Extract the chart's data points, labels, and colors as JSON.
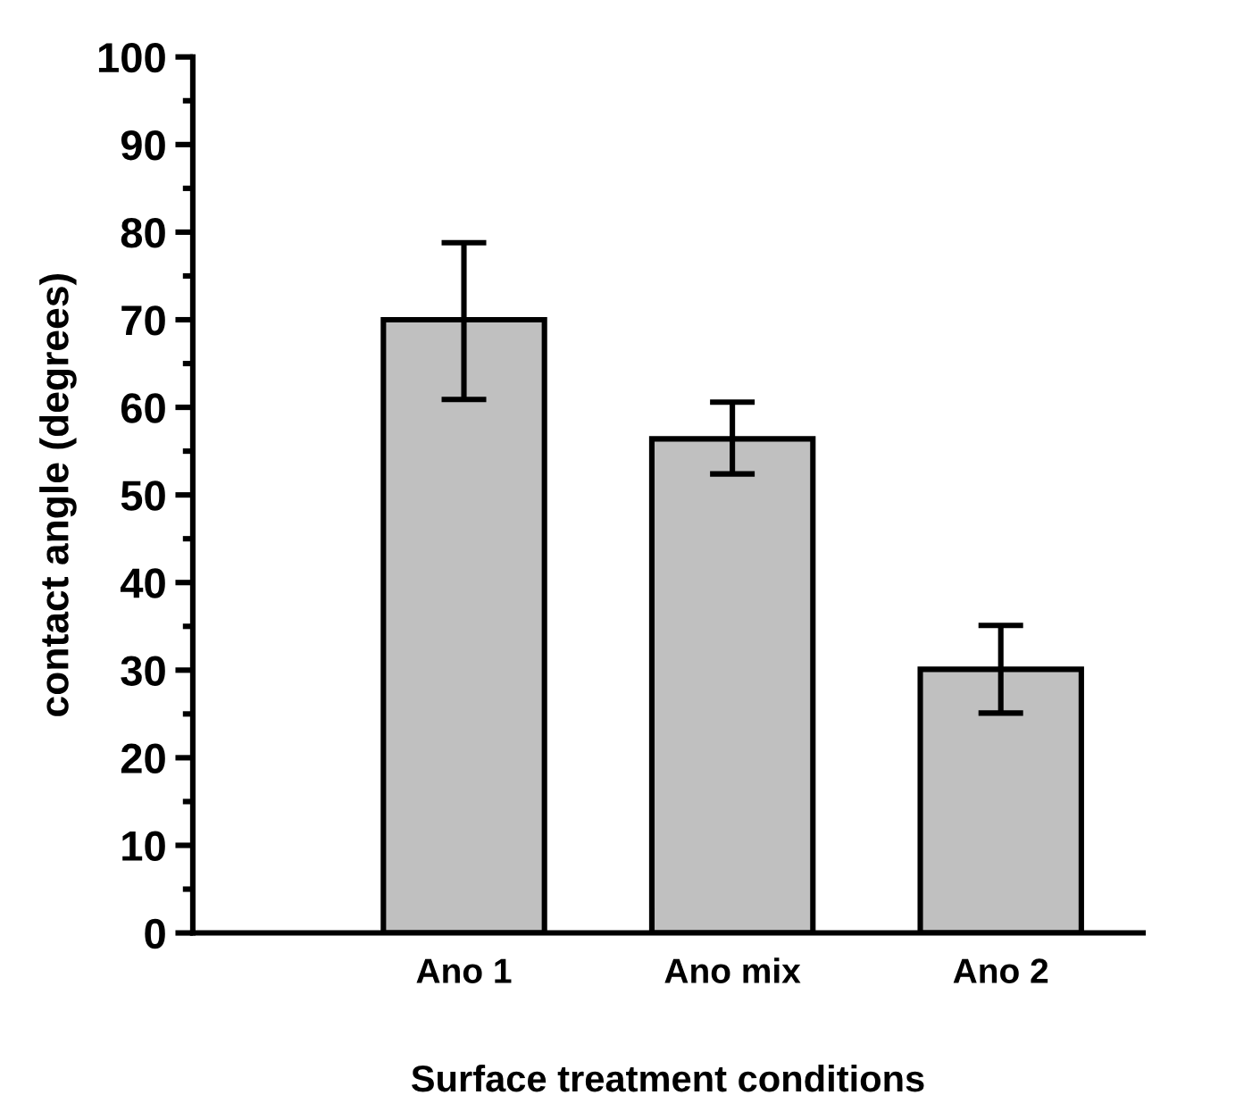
{
  "chart_data": {
    "type": "bar",
    "xlabel": "Surface treatment conditions",
    "ylabel": "contact angle (degrees)",
    "categories": [
      "Ano 1",
      "Ano mix",
      "Ano 2"
    ],
    "values": [
      70,
      56.4,
      30.1
    ],
    "errors": [
      [
        60.9,
        78.8
      ],
      [
        52.4,
        60.6
      ],
      [
        25.1,
        35.1
      ]
    ],
    "color": "#c0c0c0",
    "ylim": [
      0,
      100
    ],
    "yticks": [
      0,
      10,
      20,
      30,
      40,
      50,
      60,
      70,
      80,
      90,
      100
    ],
    "grid": false
  }
}
